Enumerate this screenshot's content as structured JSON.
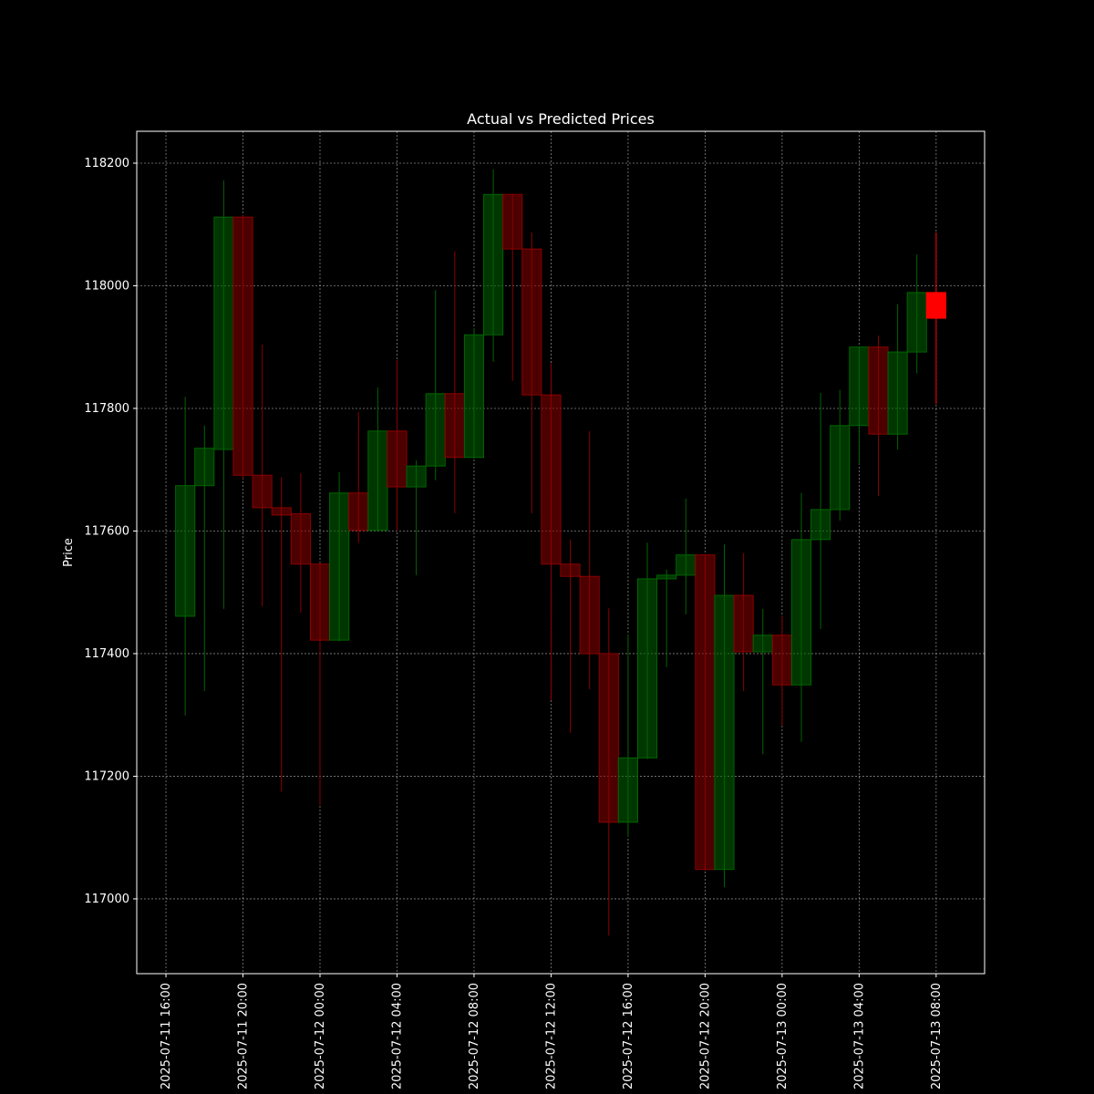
{
  "chart_data": {
    "type": "candlestick",
    "title": "Actual vs Predicted Prices",
    "y_label": "Price",
    "x": [
      "2025-07-11 17:00",
      "2025-07-11 18:00",
      "2025-07-11 19:00",
      "2025-07-11 20:00",
      "2025-07-11 21:00",
      "2025-07-11 22:00",
      "2025-07-11 23:00",
      "2025-07-12 00:00",
      "2025-07-12 01:00",
      "2025-07-12 02:00",
      "2025-07-12 03:00",
      "2025-07-12 04:00",
      "2025-07-12 05:00",
      "2025-07-12 06:00",
      "2025-07-12 07:00",
      "2025-07-12 08:00",
      "2025-07-12 09:00",
      "2025-07-12 10:00",
      "2025-07-12 11:00",
      "2025-07-12 12:00",
      "2025-07-12 13:00",
      "2025-07-12 14:00",
      "2025-07-12 15:00",
      "2025-07-12 16:00",
      "2025-07-12 17:00",
      "2025-07-12 18:00",
      "2025-07-12 19:00",
      "2025-07-12 20:00",
      "2025-07-12 21:00",
      "2025-07-12 22:00",
      "2025-07-12 23:00",
      "2025-07-13 00:00",
      "2025-07-13 01:00",
      "2025-07-13 02:00",
      "2025-07-13 03:00",
      "2025-07-13 04:00",
      "2025-07-13 05:00",
      "2025-07-13 06:00",
      "2025-07-13 07:00"
    ],
    "open": [
      117461,
      117674,
      117733,
      118112,
      117691,
      117638,
      117628,
      117546,
      117422,
      117662,
      117601,
      117763,
      117672,
      117706,
      117824,
      117720,
      117920,
      118149,
      118060,
      117822,
      117546,
      117526,
      117400,
      117125,
      117230,
      117522,
      117528,
      117561,
      117048,
      117495,
      117403,
      117430,
      117349,
      117586,
      117635,
      117772,
      117900,
      117758,
      117892
    ],
    "high": [
      117819,
      117772,
      118172,
      118115,
      117904,
      117688,
      117694,
      117548,
      117696,
      117794,
      117834,
      117879,
      117715,
      117993,
      118056,
      117931,
      118190,
      118150,
      118087,
      117874,
      117586,
      117763,
      117474,
      117431,
      117581,
      117537,
      117653,
      117562,
      117578,
      117564,
      117473,
      117462,
      117662,
      117825,
      117830,
      117901,
      117919,
      117970,
      118051
    ],
    "low": [
      117299,
      117339,
      117473,
      117685,
      117477,
      117175,
      117467,
      117153,
      117420,
      117581,
      117600,
      117600,
      117528,
      117683,
      117629,
      117718,
      117876,
      117845,
      117629,
      117324,
      117271,
      117342,
      116940,
      117101,
      117228,
      117378,
      117464,
      117046,
      117019,
      117339,
      117236,
      117283,
      117256,
      117440,
      117617,
      117708,
      117657,
      117733,
      117857
    ],
    "close": [
      117674,
      117735,
      118112,
      117691,
      117638,
      117626,
      117546,
      117422,
      117662,
      117601,
      117763,
      117672,
      117706,
      117824,
      117720,
      117920,
      118149,
      118060,
      117822,
      117546,
      117526,
      117400,
      117125,
      117230,
      117522,
      117528,
      117561,
      117048,
      117495,
      117403,
      117430,
      117349,
      117586,
      117635,
      117772,
      117900,
      117758,
      117892,
      117989
    ],
    "up_color": "#006400",
    "down_color": "#8b0000",
    "predicted": {
      "x": [
        "2025-07-13 08:00"
      ],
      "open": [
        117989
      ],
      "high": [
        118087
      ],
      "low": [
        117807
      ],
      "close": [
        117947
      ],
      "color": "#ff0000"
    },
    "xlim": [
      "2025-07-11 14:29",
      "2025-07-13 10:31"
    ],
    "xticks": [
      "2025-07-11 16:00",
      "2025-07-11 20:00",
      "2025-07-12 00:00",
      "2025-07-12 04:00",
      "2025-07-12 08:00",
      "2025-07-12 12:00",
      "2025-07-12 16:00",
      "2025-07-12 20:00",
      "2025-07-13 00:00",
      "2025-07-13 04:00",
      "2025-07-13 08:00"
    ],
    "ylim": [
      116878,
      118252
    ],
    "yticks": [
      117000,
      117200,
      117400,
      117600,
      117800,
      118000,
      118200
    ],
    "grid": true
  }
}
